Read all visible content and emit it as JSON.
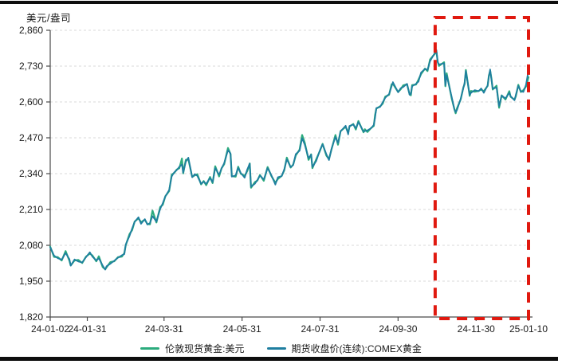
{
  "unit": "美元/盎司",
  "legend": {
    "spot_label": "伦敦现货黄金:美元",
    "futures_label": "期货收盘价(连续):COMEX黄金"
  },
  "colors": {
    "spot": "#2bab7d",
    "futures": "#1f7ea0",
    "highlight": "#e0190f",
    "grid": "#d9d9d9",
    "axis": "#4a4a4a",
    "text": "#1a1a1a",
    "frame": "#0d0d0d"
  },
  "chart_data": {
    "type": "line",
    "title": "",
    "xlabel": "",
    "ylabel": "美元/盎司",
    "ylim": [
      1820,
      2860
    ],
    "x_domain_days": [
      0,
      374
    ],
    "grid": "horizontal-dashed",
    "legend_position": "bottom-center",
    "y_ticks": {
      "values": [
        1820,
        1950,
        2080,
        2210,
        2340,
        2470,
        2600,
        2730,
        2860
      ],
      "labels": [
        "1,820",
        "1,950",
        "2,080",
        "2,210",
        "2,340",
        "2,470",
        "2,600",
        "2,730",
        "2,860"
      ]
    },
    "x_ticks": [
      {
        "day": 0,
        "label": "24-01-02"
      },
      {
        "day": 29,
        "label": "24-01-31"
      },
      {
        "day": 89,
        "label": "24-03-31"
      },
      {
        "day": 150,
        "label": "24-05-31"
      },
      {
        "day": 211,
        "label": "24-07-31"
      },
      {
        "day": 272,
        "label": "24-09-30"
      },
      {
        "day": 333,
        "label": "24-11-30"
      },
      {
        "day": 374,
        "label": "25-01-10"
      }
    ],
    "days": [
      0,
      3,
      6,
      9,
      12,
      15,
      16,
      19,
      22,
      25,
      28,
      31,
      33,
      36,
      38,
      41,
      43,
      44,
      47,
      50,
      53,
      56,
      58,
      59,
      62,
      64,
      66,
      69,
      71,
      74,
      76,
      78,
      80,
      83,
      86,
      88,
      90,
      93,
      95,
      97,
      99,
      101,
      103,
      104,
      106,
      108,
      111,
      113,
      115,
      118,
      120,
      122,
      125,
      127,
      129,
      132,
      134,
      136,
      139,
      141,
      142,
      145,
      147,
      149,
      152,
      154,
      156,
      157,
      160,
      162,
      164,
      167,
      170,
      173,
      176,
      178,
      181,
      183,
      185,
      188,
      190,
      192,
      195,
      197,
      199,
      202,
      204,
      205,
      208,
      211,
      213,
      216,
      218,
      220,
      223,
      225,
      227,
      231,
      233,
      234,
      237,
      239,
      241,
      245,
      246,
      248,
      251,
      253,
      254,
      255,
      258,
      260,
      262,
      265,
      267,
      268,
      272,
      274,
      276,
      279,
      281,
      282,
      283,
      286,
      288,
      290,
      293,
      295,
      297,
      302,
      303,
      304,
      308,
      309,
      310,
      314,
      316,
      317,
      318,
      321,
      323,
      324,
      325,
      328,
      329,
      332,
      335,
      337,
      339,
      342,
      343,
      344,
      345,
      346,
      349,
      351,
      353,
      356,
      359,
      360,
      363,
      364,
      366,
      368,
      370,
      372,
      374
    ],
    "series": [
      {
        "name": "伦敦现货黄金:美元",
        "color": "#2bab7d",
        "values": [
          2075,
          2038,
          2037,
          2025,
          2059,
          2024,
          2007,
          2025,
          2027,
          2016,
          2039,
          2050,
          2043,
          2022,
          2040,
          2001,
          1993,
          2000,
          2019,
          2022,
          2037,
          2039,
          2052,
          2080,
          2121,
          2135,
          2166,
          2178,
          2164,
          2173,
          2157,
          2156,
          2206,
          2163,
          2219,
          2227,
          2258,
          2277,
          2336,
          2343,
          2355,
          2360,
          2395,
          2341,
          2390,
          2392,
          2328,
          2334,
          2338,
          2301,
          2313,
          2298,
          2328,
          2306,
          2367,
          2330,
          2360,
          2374,
          2433,
          2411,
          2331,
          2329,
          2365,
          2340,
          2332,
          2349,
          2377,
          2289,
          2309,
          2315,
          2335,
          2314,
          2364,
          2331,
          2307,
          2321,
          2332,
          2352,
          2398,
          2362,
          2373,
          2406,
          2427,
          2480,
          2452,
          2390,
          2410,
          2360,
          2392,
          2424,
          2448,
          2405,
          2393,
          2428,
          2480,
          2445,
          2494,
          2510,
          2488,
          2511,
          2520,
          2500,
          2531,
          2490,
          2501,
          2491,
          2506,
          2513,
          2552,
          2576,
          2584,
          2594,
          2619,
          2626,
          2664,
          2666,
          2636,
          2646,
          2660,
          2664,
          2628,
          2624,
          2661,
          2663,
          2681,
          2701,
          2721,
          2712,
          2754,
          2782,
          2746,
          2731,
          2744,
          2657,
          2704,
          2612,
          2574,
          2559,
          2576,
          2610,
          2652,
          2665,
          2716,
          2622,
          2640,
          2637,
          2640,
          2645,
          2639,
          2658,
          2696,
          2713,
          2685,
          2645,
          2659,
          2579,
          2624,
          2609,
          2639,
          2619,
          2608,
          2620,
          2662,
          2636,
          2643,
          2656,
          2690
        ]
      },
      {
        "name": "期货收盘价(连续):COMEX黄金",
        "color": "#1f7ea0",
        "values": [
          2073,
          2043,
          2033,
          2028,
          2052,
          2030,
          2006,
          2029,
          2021,
          2018,
          2037,
          2055,
          2039,
          2025,
          2033,
          2007,
          1992,
          2004,
          2013,
          2024,
          2035,
          2044,
          2048,
          2083,
          2114,
          2141,
          2165,
          2182,
          2158,
          2175,
          2155,
          2161,
          2186,
          2166,
          2212,
          2233,
          2257,
          2281,
          2330,
          2345,
          2353,
          2365,
          2373,
          2344,
          2383,
          2398,
          2327,
          2338,
          2332,
          2303,
          2311,
          2303,
          2324,
          2309,
          2360,
          2336,
          2359,
          2378,
          2425,
          2413,
          2329,
          2334,
          2361,
          2343,
          2325,
          2355,
          2376,
          2293,
          2303,
          2317,
          2333,
          2319,
          2360,
          2334,
          2300,
          2327,
          2331,
          2356,
          2392,
          2364,
          2371,
          2411,
          2423,
          2468,
          2445,
          2396,
          2409,
          2364,
          2386,
          2426,
          2446,
          2410,
          2389,
          2431,
          2473,
          2451,
          2493,
          2514,
          2482,
          2513,
          2518,
          2505,
          2527,
          2493,
          2494,
          2497,
          2505,
          2517,
          2542,
          2578,
          2582,
          2599,
          2615,
          2629,
          2657,
          2672,
          2635,
          2650,
          2654,
          2666,
          2626,
          2629,
          2657,
          2666,
          2674,
          2707,
          2720,
          2716,
          2748,
          2788,
          2744,
          2736,
          2740,
          2660,
          2697,
          2618,
          2573,
          2563,
          2570,
          2612,
          2650,
          2670,
          2712,
          2625,
          2633,
          2643,
          2639,
          2649,
          2633,
          2660,
          2694,
          2718,
          2681,
          2648,
          2652,
          2585,
          2623,
          2613,
          2633,
          2621,
          2606,
          2625,
          2658,
          2639,
          2636,
          2662,
          2715
        ]
      }
    ],
    "highlight_box": {
      "style": "dashed",
      "color": "#e0190f",
      "from_day": 301,
      "to_day": 374
    }
  }
}
